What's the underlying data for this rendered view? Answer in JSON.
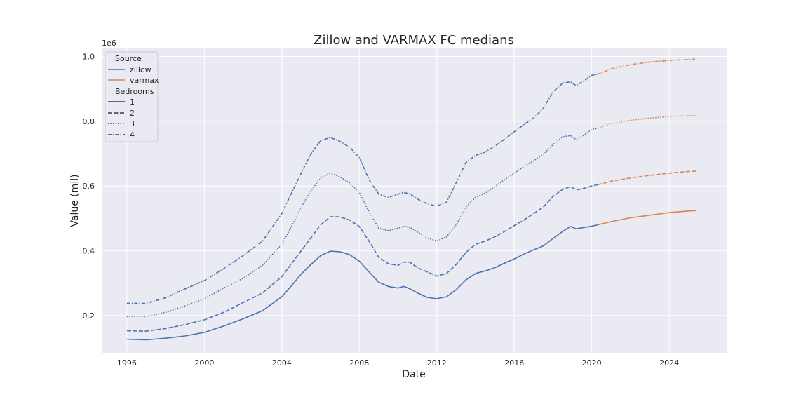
{
  "chart_data": {
    "type": "line",
    "title": "Zillow and VARMAX FC medians",
    "xlabel": "Date",
    "ylabel": "Value (mil)",
    "y_offset_label": "1e6",
    "xlim": [
      1994.7,
      2027.0
    ],
    "ylim": [
      85000,
      1025000
    ],
    "x_ticks": [
      1996,
      2000,
      2004,
      2008,
      2012,
      2016,
      2020,
      2024
    ],
    "x_tick_labels": [
      "1996",
      "2000",
      "2004",
      "2008",
      "2012",
      "2016",
      "2020",
      "2024"
    ],
    "y_ticks": [
      200000,
      400000,
      600000,
      800000,
      1000000
    ],
    "y_tick_labels": [
      "0.2",
      "0.4",
      "0.6",
      "0.8",
      "1.0"
    ],
    "grid": true,
    "legend_position": "top-left",
    "colors": {
      "zillow": "#4c72b0",
      "varmax": "#dd8452",
      "background": "#eaeaf2",
      "grid": "#ffffff"
    },
    "legend": {
      "source_title": "Source",
      "sources": [
        "zillow",
        "varmax"
      ],
      "bedrooms_title": "Bedrooms",
      "bedrooms": [
        "1",
        "2",
        "3",
        "4"
      ]
    },
    "series": [
      {
        "source": "zillow",
        "bedrooms": "1",
        "x": [
          1996.0,
          1997.0,
          1998.0,
          1999.0,
          2000.0,
          2001.0,
          2002.0,
          2003.0,
          2004.0,
          2004.5,
          2005.0,
          2005.5,
          2006.0,
          2006.5,
          2007.0,
          2007.5,
          2008.0,
          2008.5,
          2009.0,
          2009.5,
          2010.0,
          2010.3,
          2010.6,
          2011.0,
          2011.5,
          2012.0,
          2012.5,
          2013.0,
          2013.5,
          2014.0,
          2014.5,
          2015.0,
          2015.5,
          2016.0,
          2016.5,
          2017.0,
          2017.5,
          2018.0,
          2018.5,
          2018.9,
          2019.2,
          2019.6,
          2020.0,
          2020.3
        ],
        "y": [
          127000,
          125000,
          130000,
          137000,
          148000,
          168000,
          190000,
          215000,
          258000,
          292000,
          328000,
          358000,
          385000,
          399000,
          397000,
          388000,
          368000,
          335000,
          303000,
          290000,
          285000,
          290000,
          283000,
          270000,
          256000,
          252000,
          258000,
          280000,
          310000,
          330000,
          338000,
          348000,
          362000,
          375000,
          390000,
          403000,
          415000,
          438000,
          460000,
          475000,
          468000,
          472000,
          476000,
          480000
        ]
      },
      {
        "source": "zillow",
        "bedrooms": "2",
        "x": [
          1996.0,
          1997.0,
          1998.0,
          1999.0,
          2000.0,
          2001.0,
          2002.0,
          2003.0,
          2004.0,
          2004.5,
          2005.0,
          2005.5,
          2006.0,
          2006.5,
          2007.0,
          2007.5,
          2008.0,
          2008.5,
          2009.0,
          2009.5,
          2010.0,
          2010.3,
          2010.6,
          2011.0,
          2011.5,
          2012.0,
          2012.5,
          2013.0,
          2013.5,
          2014.0,
          2014.5,
          2015.0,
          2015.5,
          2016.0,
          2016.5,
          2017.0,
          2017.5,
          2018.0,
          2018.5,
          2018.9,
          2019.2,
          2019.6,
          2020.0,
          2020.3
        ],
        "y": [
          153000,
          152000,
          160000,
          172000,
          187000,
          210000,
          240000,
          270000,
          320000,
          360000,
          400000,
          440000,
          480000,
          505000,
          505000,
          495000,
          475000,
          430000,
          380000,
          360000,
          355000,
          365000,
          365000,
          348000,
          335000,
          322000,
          330000,
          358000,
          395000,
          420000,
          430000,
          443000,
          460000,
          478000,
          495000,
          515000,
          535000,
          568000,
          590000,
          598000,
          588000,
          593000,
          600000,
          604000
        ]
      },
      {
        "source": "zillow",
        "bedrooms": "3",
        "x": [
          1996.0,
          1997.0,
          1998.0,
          1999.0,
          2000.0,
          2001.0,
          2002.0,
          2003.0,
          2004.0,
          2004.5,
          2005.0,
          2005.5,
          2006.0,
          2006.5,
          2007.0,
          2007.5,
          2008.0,
          2008.5,
          2009.0,
          2009.5,
          2010.0,
          2010.3,
          2010.6,
          2011.0,
          2011.5,
          2012.0,
          2012.5,
          2013.0,
          2013.5,
          2014.0,
          2014.5,
          2015.0,
          2015.5,
          2016.0,
          2016.5,
          2017.0,
          2017.5,
          2018.0,
          2018.5,
          2018.9,
          2019.2,
          2019.6,
          2020.0,
          2020.3
        ],
        "y": [
          197000,
          197000,
          210000,
          230000,
          252000,
          285000,
          315000,
          355000,
          420000,
          475000,
          535000,
          585000,
          625000,
          640000,
          628000,
          610000,
          580000,
          520000,
          470000,
          462000,
          470000,
          475000,
          473000,
          458000,
          440000,
          430000,
          443000,
          480000,
          535000,
          565000,
          578000,
          598000,
          620000,
          640000,
          660000,
          678000,
          698000,
          728000,
          752000,
          756000,
          743000,
          757000,
          775000,
          778000
        ]
      },
      {
        "source": "zillow",
        "bedrooms": "4",
        "x": [
          1996.0,
          1997.0,
          1998.0,
          1999.0,
          2000.0,
          2001.0,
          2002.0,
          2003.0,
          2004.0,
          2004.5,
          2005.0,
          2005.5,
          2006.0,
          2006.5,
          2007.0,
          2007.5,
          2008.0,
          2008.5,
          2009.0,
          2009.5,
          2010.0,
          2010.3,
          2010.6,
          2011.0,
          2011.5,
          2012.0,
          2012.5,
          2013.0,
          2013.5,
          2014.0,
          2014.5,
          2015.0,
          2015.5,
          2016.0,
          2016.5,
          2017.0,
          2017.5,
          2018.0,
          2018.5,
          2018.9,
          2019.2,
          2019.6,
          2020.0,
          2020.3
        ],
        "y": [
          238000,
          238000,
          255000,
          282000,
          308000,
          345000,
          385000,
          430000,
          515000,
          578000,
          640000,
          700000,
          740000,
          750000,
          738000,
          720000,
          688000,
          620000,
          575000,
          565000,
          575000,
          580000,
          576000,
          560000,
          545000,
          538000,
          550000,
          610000,
          672000,
          695000,
          705000,
          723000,
          745000,
          768000,
          790000,
          810000,
          840000,
          890000,
          918000,
          922000,
          910000,
          925000,
          942000,
          945000
        ]
      },
      {
        "source": "varmax",
        "bedrooms": "1",
        "x": [
          2020.3,
          2021.0,
          2022.0,
          2023.0,
          2024.0,
          2025.0,
          2025.4
        ],
        "y": [
          480000,
          490000,
          502000,
          510000,
          518000,
          523000,
          524000
        ]
      },
      {
        "source": "varmax",
        "bedrooms": "2",
        "x": [
          2020.3,
          2021.0,
          2022.0,
          2023.0,
          2024.0,
          2025.0,
          2025.4
        ],
        "y": [
          604000,
          615000,
          625000,
          633000,
          640000,
          645000,
          646000
        ]
      },
      {
        "source": "varmax",
        "bedrooms": "3",
        "x": [
          2020.3,
          2021.0,
          2022.0,
          2023.0,
          2024.0,
          2025.0,
          2025.4
        ],
        "y": [
          778000,
          793000,
          803000,
          810000,
          815000,
          817000,
          817000
        ]
      },
      {
        "source": "varmax",
        "bedrooms": "4",
        "x": [
          2020.3,
          2021.0,
          2022.0,
          2023.0,
          2024.0,
          2025.0,
          2025.4
        ],
        "y": [
          945000,
          962000,
          975000,
          983000,
          988000,
          991000,
          992000
        ]
      }
    ]
  }
}
